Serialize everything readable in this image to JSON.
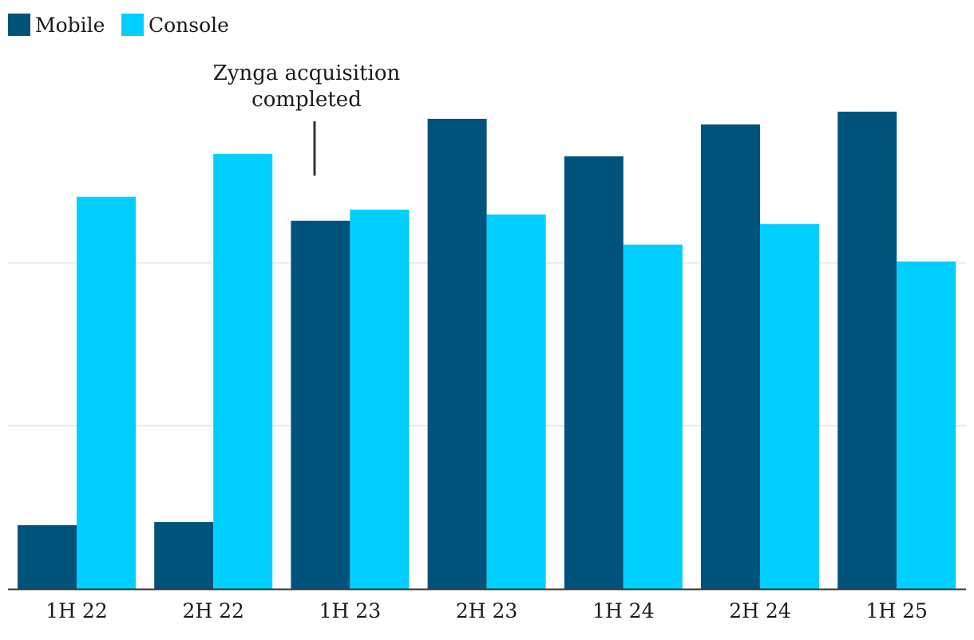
{
  "chart_data": {
    "type": "bar",
    "categories": [
      "1H 22",
      "2H 22",
      "1H 23",
      "2H 23",
      "1H 24",
      "2H 24",
      "1H 25"
    ],
    "series": [
      {
        "name": "Mobile",
        "color": "#00547c",
        "values": [
          80,
          84,
          462,
          590,
          543,
          583,
          599
        ]
      },
      {
        "name": "Console",
        "color": "#00cfff",
        "values": [
          492,
          546,
          476,
          470,
          432,
          458,
          411
        ]
      }
    ],
    "ylim": [
      0,
      675
    ],
    "gridlines": [
      205,
      410
    ],
    "legend": "top-left",
    "annotation": {
      "lines": [
        "Zynga acquisition",
        "completed"
      ],
      "category": "1H 23"
    }
  }
}
